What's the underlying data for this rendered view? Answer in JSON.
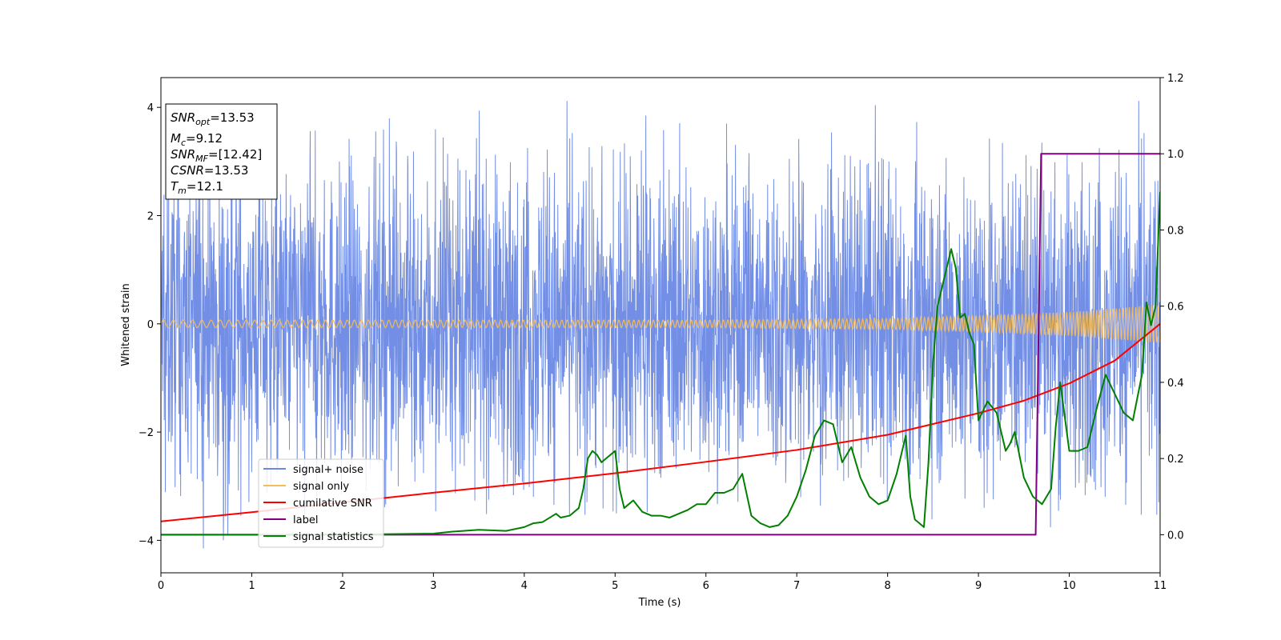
{
  "chart_data": {
    "type": "line",
    "xlabel": "Time (s)",
    "ylabel": "Whitened strain",
    "xlim": [
      0,
      11
    ],
    "ylim": [
      -4.6,
      4.55
    ],
    "ylim_right": [
      -0.1,
      1.2
    ],
    "xticks": [
      "0",
      "1",
      "2",
      "3",
      "4",
      "5",
      "6",
      "7",
      "8",
      "9",
      "10",
      "11"
    ],
    "yticks": [
      "−4",
      "−2",
      "0",
      "2",
      "4"
    ],
    "yticks_right": [
      "0.0",
      "0.2",
      "0.4",
      "0.6",
      "0.8",
      "1.0",
      "1.2"
    ],
    "legend": {
      "location": "lower-left",
      "entries": [
        "signal+ noise",
        "signal only",
        "cumilative SNR",
        "label",
        "signal statistics"
      ]
    },
    "info_box": [
      {
        "base": "SNR",
        "sub": "opt",
        "value": "=13.53"
      },
      {
        "base": "M",
        "sub": "c",
        "value": "=9.12"
      },
      {
        "base": "SNR",
        "sub": "MF",
        "value": "=[12.42]"
      },
      {
        "base": "CSNR",
        "sub": "",
        "value": "=13.53"
      },
      {
        "base": "T",
        "sub": "m",
        "value": "=12.1"
      }
    ],
    "colors": {
      "noise": "#6a88e4",
      "signal": "#f5bd5a",
      "csnr": "#ff0000",
      "label": "#800080",
      "stats": "#008000"
    },
    "series": [
      {
        "name": "signal+ noise",
        "axis": "left",
        "noise_envelope": {
          "typical_amplitude": 2.5,
          "peak_max": 4.12,
          "trough_min": -4.15
        }
      },
      {
        "name": "signal only",
        "axis": "left",
        "chirp_amplitude": [
          [
            0,
            0.07
          ],
          [
            6,
            0.07
          ],
          [
            8,
            0.1
          ],
          [
            9,
            0.15
          ],
          [
            10,
            0.22
          ],
          [
            11,
            0.35
          ]
        ]
      },
      {
        "name": "cumilative SNR",
        "axis": "left",
        "x": [
          0,
          1,
          2,
          3,
          4,
          5,
          6,
          7,
          8,
          9,
          9.5,
          10,
          10.5,
          11
        ],
        "y": [
          -3.65,
          -3.48,
          -3.3,
          -3.12,
          -2.95,
          -2.76,
          -2.55,
          -2.33,
          -2.05,
          -1.65,
          -1.42,
          -1.1,
          -0.68,
          0.0
        ]
      },
      {
        "name": "label",
        "axis": "right",
        "x": [
          0,
          9.63,
          9.69,
          11
        ],
        "y": [
          0.0,
          0.0,
          1.0,
          1.0
        ]
      },
      {
        "name": "signal statistics",
        "axis": "right",
        "x": [
          0,
          1,
          2,
          3,
          3.2,
          3.5,
          3.8,
          4,
          4.1,
          4.2,
          4.35,
          4.4,
          4.5,
          4.6,
          4.65,
          4.7,
          4.75,
          4.8,
          4.85,
          4.9,
          5.0,
          5.05,
          5.1,
          5.2,
          5.3,
          5.4,
          5.5,
          5.6,
          5.7,
          5.8,
          5.9,
          6.0,
          6.1,
          6.2,
          6.3,
          6.4,
          6.5,
          6.55,
          6.6,
          6.7,
          6.8,
          6.9,
          7.0,
          7.1,
          7.2,
          7.3,
          7.4,
          7.5,
          7.6,
          7.7,
          7.8,
          7.9,
          8.0,
          8.1,
          8.2,
          8.25,
          8.3,
          8.4,
          8.45,
          8.5,
          8.55,
          8.6,
          8.65,
          8.7,
          8.75,
          8.8,
          8.85,
          8.9,
          8.95,
          9.0,
          9.1,
          9.2,
          9.3,
          9.35,
          9.4,
          9.5,
          9.6,
          9.7,
          9.8,
          9.85,
          9.9,
          10.0,
          10.1,
          10.2,
          10.3,
          10.4,
          10.5,
          10.6,
          10.7,
          10.8,
          10.85,
          10.9,
          10.95,
          11
        ],
        "y": [
          0.0,
          0.0,
          0.0,
          0.003,
          0.008,
          0.013,
          0.01,
          0.02,
          0.03,
          0.033,
          0.055,
          0.045,
          0.05,
          0.07,
          0.12,
          0.2,
          0.22,
          0.21,
          0.19,
          0.2,
          0.22,
          0.12,
          0.07,
          0.09,
          0.06,
          0.05,
          0.05,
          0.045,
          0.055,
          0.065,
          0.08,
          0.08,
          0.11,
          0.11,
          0.12,
          0.16,
          0.05,
          0.04,
          0.03,
          0.02,
          0.025,
          0.05,
          0.1,
          0.17,
          0.26,
          0.3,
          0.29,
          0.19,
          0.23,
          0.15,
          0.1,
          0.08,
          0.09,
          0.16,
          0.26,
          0.1,
          0.04,
          0.02,
          0.19,
          0.45,
          0.6,
          0.65,
          0.7,
          0.75,
          0.7,
          0.57,
          0.58,
          0.53,
          0.5,
          0.3,
          0.35,
          0.32,
          0.22,
          0.24,
          0.27,
          0.15,
          0.1,
          0.08,
          0.12,
          0.28,
          0.4,
          0.22,
          0.22,
          0.23,
          0.33,
          0.42,
          0.37,
          0.32,
          0.3,
          0.42,
          0.61,
          0.55,
          0.6,
          0.9
        ]
      }
    ]
  }
}
